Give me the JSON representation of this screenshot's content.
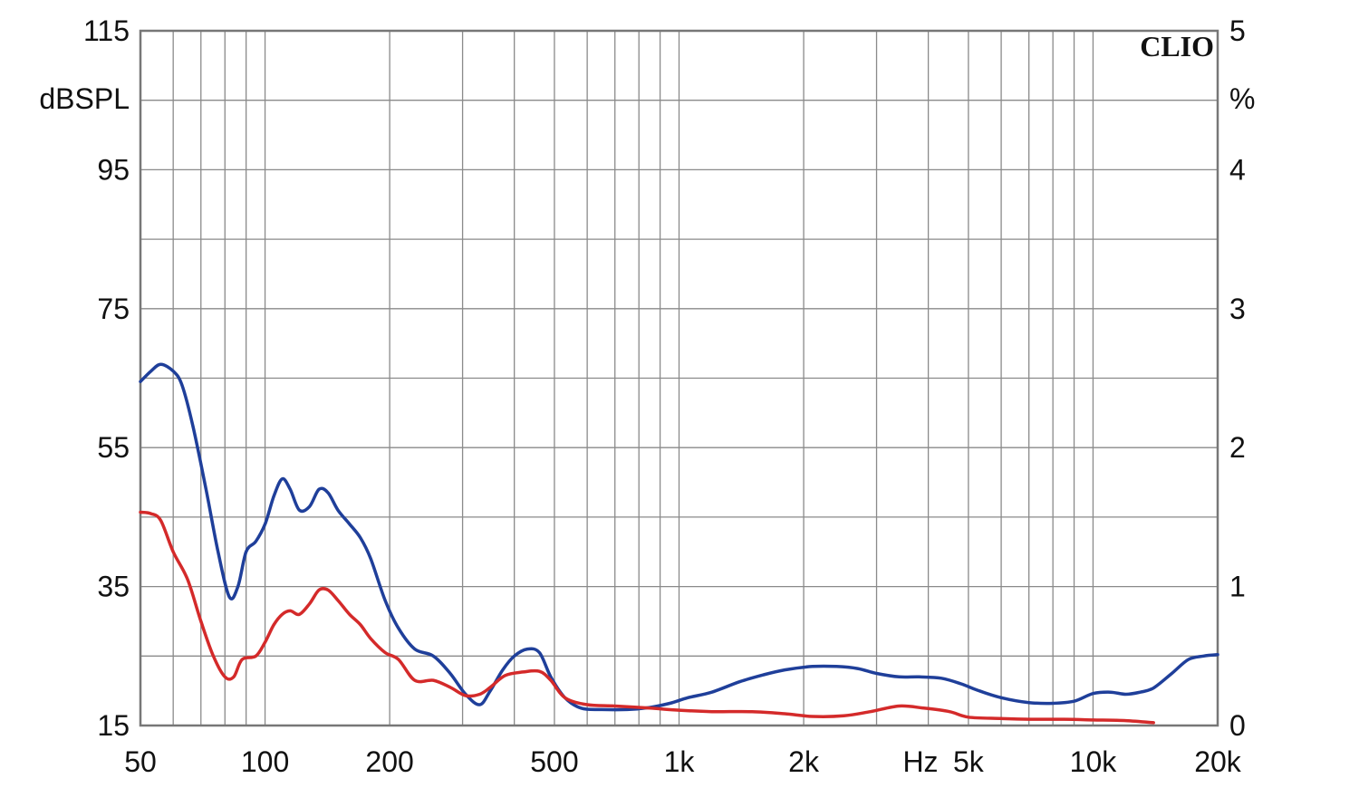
{
  "chart_data": {
    "type": "line",
    "brand": "CLIO",
    "x_scale": "log",
    "xlim": [
      50,
      20000
    ],
    "x_unit_label": "Hz",
    "x_ticks": [
      {
        "value": 50,
        "label": "50"
      },
      {
        "value": 100,
        "label": "100"
      },
      {
        "value": 200,
        "label": "200"
      },
      {
        "value": 500,
        "label": "500"
      },
      {
        "value": 1000,
        "label": "1k"
      },
      {
        "value": 2000,
        "label": "2k"
      },
      {
        "value": 5000,
        "label": "5k"
      },
      {
        "value": 10000,
        "label": "10k"
      },
      {
        "value": 20000,
        "label": "20k"
      }
    ],
    "y_left": {
      "unit": "dBSPL",
      "ylim": [
        15,
        115
      ],
      "ticks": [
        "115",
        "95",
        "75",
        "55",
        "35",
        "15"
      ]
    },
    "y_right": {
      "unit": "%",
      "ylim": [
        0,
        5
      ],
      "ticks": [
        "5",
        "4",
        "3",
        "2",
        "1",
        "0"
      ]
    },
    "grid": true,
    "series": [
      {
        "color": "#1f3f9a",
        "axis": "left",
        "points": [
          [
            50,
            64.5
          ],
          [
            53,
            66
          ],
          [
            56,
            67
          ],
          [
            60,
            66
          ],
          [
            63,
            64
          ],
          [
            67,
            58
          ],
          [
            72,
            49
          ],
          [
            77,
            40
          ],
          [
            82,
            33.5
          ],
          [
            86,
            35
          ],
          [
            90,
            40
          ],
          [
            95,
            41.5
          ],
          [
            100,
            44
          ],
          [
            105,
            48
          ],
          [
            110,
            50.5
          ],
          [
            115,
            49
          ],
          [
            121,
            46
          ],
          [
            128,
            46.5
          ],
          [
            135,
            49
          ],
          [
            142,
            48.5
          ],
          [
            150,
            46
          ],
          [
            160,
            44
          ],
          [
            170,
            42
          ],
          [
            180,
            39
          ],
          [
            195,
            33
          ],
          [
            210,
            29
          ],
          [
            230,
            26
          ],
          [
            255,
            25
          ],
          [
            280,
            22.5
          ],
          [
            305,
            19.5
          ],
          [
            330,
            18
          ],
          [
            350,
            20
          ],
          [
            375,
            23
          ],
          [
            400,
            25
          ],
          [
            430,
            26
          ],
          [
            460,
            25.5
          ],
          [
            490,
            22
          ],
          [
            530,
            19
          ],
          [
            580,
            17.5
          ],
          [
            650,
            17.3
          ],
          [
            750,
            17.3
          ],
          [
            850,
            17.6
          ],
          [
            950,
            18.2
          ],
          [
            1050,
            19
          ],
          [
            1200,
            19.8
          ],
          [
            1400,
            21.3
          ],
          [
            1600,
            22.3
          ],
          [
            1800,
            23
          ],
          [
            2100,
            23.5
          ],
          [
            2400,
            23.5
          ],
          [
            2700,
            23.2
          ],
          [
            3000,
            22.5
          ],
          [
            3400,
            22
          ],
          [
            3800,
            22
          ],
          [
            4300,
            21.8
          ],
          [
            4800,
            21
          ],
          [
            5300,
            20
          ],
          [
            6000,
            19
          ],
          [
            7000,
            18.3
          ],
          [
            8000,
            18.2
          ],
          [
            9000,
            18.5
          ],
          [
            10000,
            19.6
          ],
          [
            11000,
            19.8
          ],
          [
            12000,
            19.5
          ],
          [
            13000,
            19.8
          ],
          [
            14000,
            20.4
          ],
          [
            15500,
            22.5
          ],
          [
            17000,
            24.5
          ],
          [
            18500,
            25
          ],
          [
            20000,
            25.2
          ]
        ]
      },
      {
        "color": "#d42a2a",
        "axis": "left",
        "points": [
          [
            50,
            45.7
          ],
          [
            53,
            45.5
          ],
          [
            56,
            44.5
          ],
          [
            60,
            40
          ],
          [
            65,
            36
          ],
          [
            70,
            30
          ],
          [
            75,
            25
          ],
          [
            80,
            22
          ],
          [
            84,
            22
          ],
          [
            88,
            24.5
          ],
          [
            95,
            25
          ],
          [
            100,
            27
          ],
          [
            105,
            29.5
          ],
          [
            110,
            31
          ],
          [
            115,
            31.5
          ],
          [
            121,
            31
          ],
          [
            128,
            32.5
          ],
          [
            135,
            34.5
          ],
          [
            142,
            34.5
          ],
          [
            150,
            33
          ],
          [
            160,
            31
          ],
          [
            170,
            29.5
          ],
          [
            180,
            27.5
          ],
          [
            195,
            25.5
          ],
          [
            210,
            24.5
          ],
          [
            230,
            21.5
          ],
          [
            255,
            21.5
          ],
          [
            280,
            20.5
          ],
          [
            305,
            19.3
          ],
          [
            330,
            19.5
          ],
          [
            350,
            20.5
          ],
          [
            380,
            22.2
          ],
          [
            420,
            22.7
          ],
          [
            460,
            22.8
          ],
          [
            490,
            21.5
          ],
          [
            530,
            19
          ],
          [
            600,
            18
          ],
          [
            700,
            17.8
          ],
          [
            850,
            17.5
          ],
          [
            1000,
            17.2
          ],
          [
            1200,
            17
          ],
          [
            1500,
            17
          ],
          [
            1800,
            16.7
          ],
          [
            2100,
            16.3
          ],
          [
            2500,
            16.4
          ],
          [
            2900,
            17
          ],
          [
            3400,
            17.8
          ],
          [
            3900,
            17.5
          ],
          [
            4500,
            17
          ],
          [
            5000,
            16.2
          ],
          [
            6000,
            16
          ],
          [
            7000,
            15.9
          ],
          [
            8500,
            15.9
          ],
          [
            10000,
            15.8
          ],
          [
            12000,
            15.7
          ],
          [
            14000,
            15.4
          ]
        ]
      }
    ]
  }
}
